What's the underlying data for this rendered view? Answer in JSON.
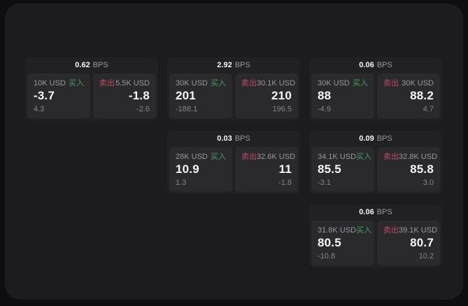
{
  "labels": {
    "buy": "买入",
    "sell": "卖出",
    "bps_unit": "BPS"
  },
  "colors": {
    "background": "#0e0e10",
    "window": "#1c1c1e",
    "card": "#212123",
    "pane": "#2a2a2c",
    "buy_green": "#4a9e60",
    "sell_red": "#bf4a64",
    "text_primary": "#f5f5f5",
    "text_secondary": "#98989d"
  },
  "cards": [
    {
      "bps": "0.62",
      "buy": {
        "amount": "10K USD",
        "value": "-3.7",
        "sub": "4.3"
      },
      "sell": {
        "amount": "5.5K USD",
        "value": "-1.8",
        "sub": "-2.6"
      }
    },
    {
      "bps": "2.92",
      "buy": {
        "amount": "30K USD",
        "value": "201",
        "sub": "-188.1"
      },
      "sell": {
        "amount": "30.1K USD",
        "value": "210",
        "sub": "196.5"
      }
    },
    {
      "bps": "0.06",
      "buy": {
        "amount": "30K USD",
        "value": "88",
        "sub": "-4.9"
      },
      "sell": {
        "amount": "30K USD",
        "value": "88.2",
        "sub": "4.7"
      }
    },
    {
      "bps": "0.03",
      "buy": {
        "amount": "28K USD",
        "value": "10.9",
        "sub": "1.3"
      },
      "sell": {
        "amount": "32.6K USD",
        "value": "11",
        "sub": "-1.8"
      }
    },
    {
      "bps": "0.09",
      "buy": {
        "amount": "34.1K USD",
        "value": "85.5",
        "sub": "-3.1"
      },
      "sell": {
        "amount": "32.8K USD",
        "value": "85.8",
        "sub": "3.0"
      }
    },
    {
      "bps": "0.06",
      "buy": {
        "amount": "31.8K USD",
        "value": "80.5",
        "sub": "-10.8"
      },
      "sell": {
        "amount": "39.1K USD",
        "value": "80.7",
        "sub": "10.2"
      }
    }
  ]
}
